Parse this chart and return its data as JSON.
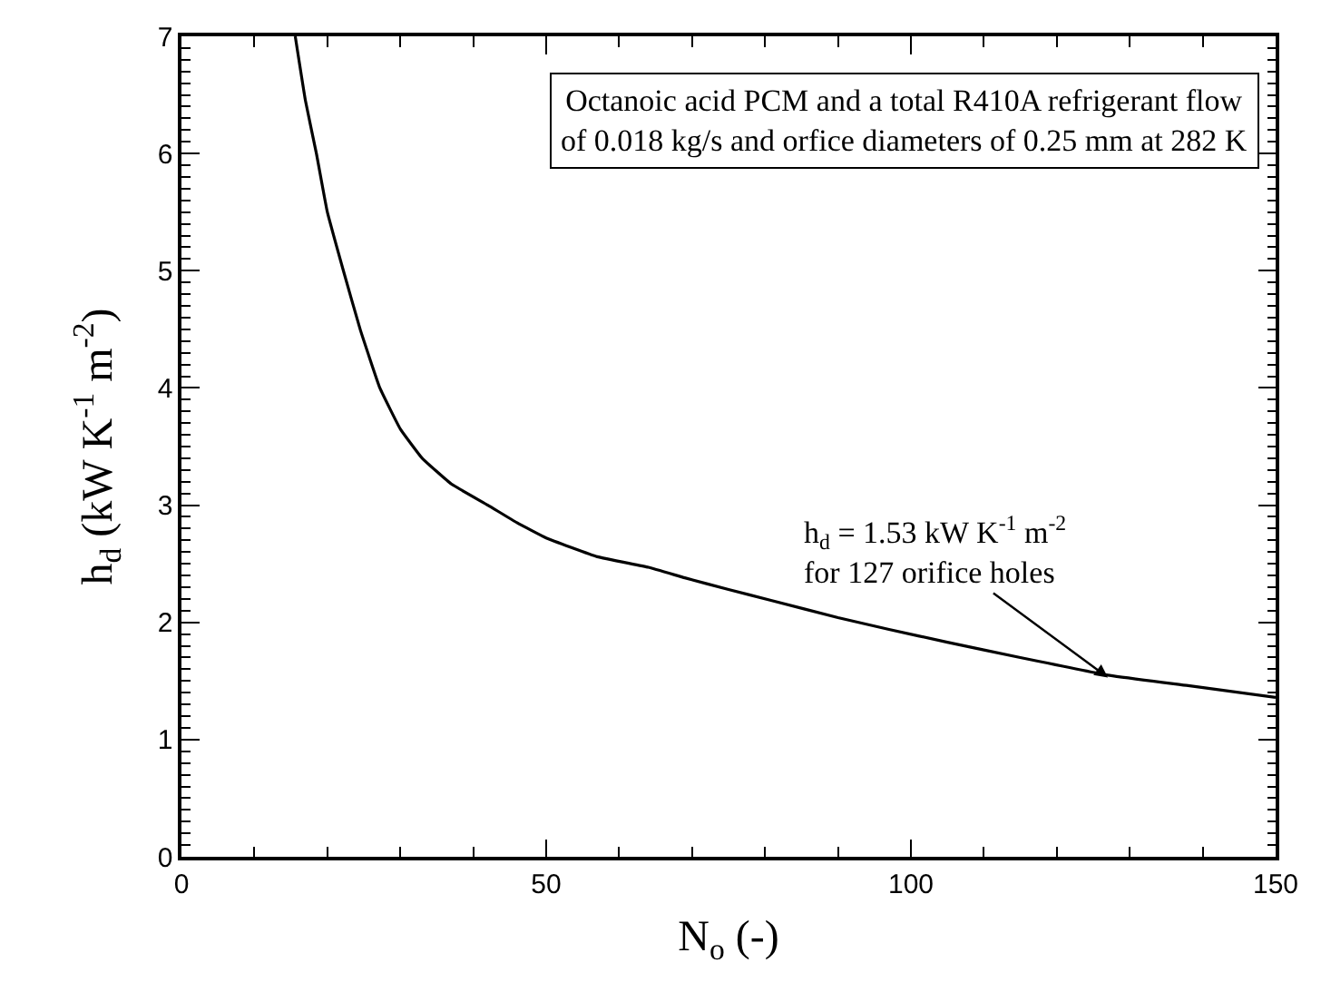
{
  "chart_data": {
    "type": "line",
    "xlabel": "N$_{o}$ (-)",
    "ylabel": "h$_{d}$ (kW K$^{-1}$ m$^{-2}$)",
    "x": [
      15.6,
      17,
      18.5,
      20,
      22.2,
      24.5,
      27.2,
      30,
      33,
      37,
      42,
      46,
      50,
      57,
      64,
      69,
      75,
      80.7,
      90,
      97,
      105,
      115,
      127,
      138,
      150
    ],
    "series": [
      {
        "color": "#000000",
        "values": [
          7,
          6.45,
          6,
          5.5,
          5,
          4.5,
          4,
          3.65,
          3.4,
          3.18,
          3.0,
          2.85,
          2.72,
          2.56,
          2.47,
          2.38,
          2.28,
          2.19,
          2.04,
          1.94,
          1.83,
          1.7,
          1.55,
          1.46,
          1.36
        ]
      }
    ],
    "xlim": [
      0,
      150
    ],
    "xticks": [
      0,
      50,
      100,
      150
    ],
    "ylim": [
      0,
      7
    ],
    "yticks": [
      0,
      1,
      2,
      3,
      4,
      5,
      6,
      7
    ],
    "annotations": [
      "Octanoic acid PCM and a total R410A refrigerant flow\nof 0.018 kg/s and orfice diameters of 0.25 mm at 282 K",
      {
        "text": "h$_{d}$ = 1.53 kW K$^{-1}$ m$^{-2}$\nfor 127 orifice holes",
        "x": 127,
        "y": 1.53
      }
    ],
    "line_style": "solid",
    "marker": "none"
  }
}
